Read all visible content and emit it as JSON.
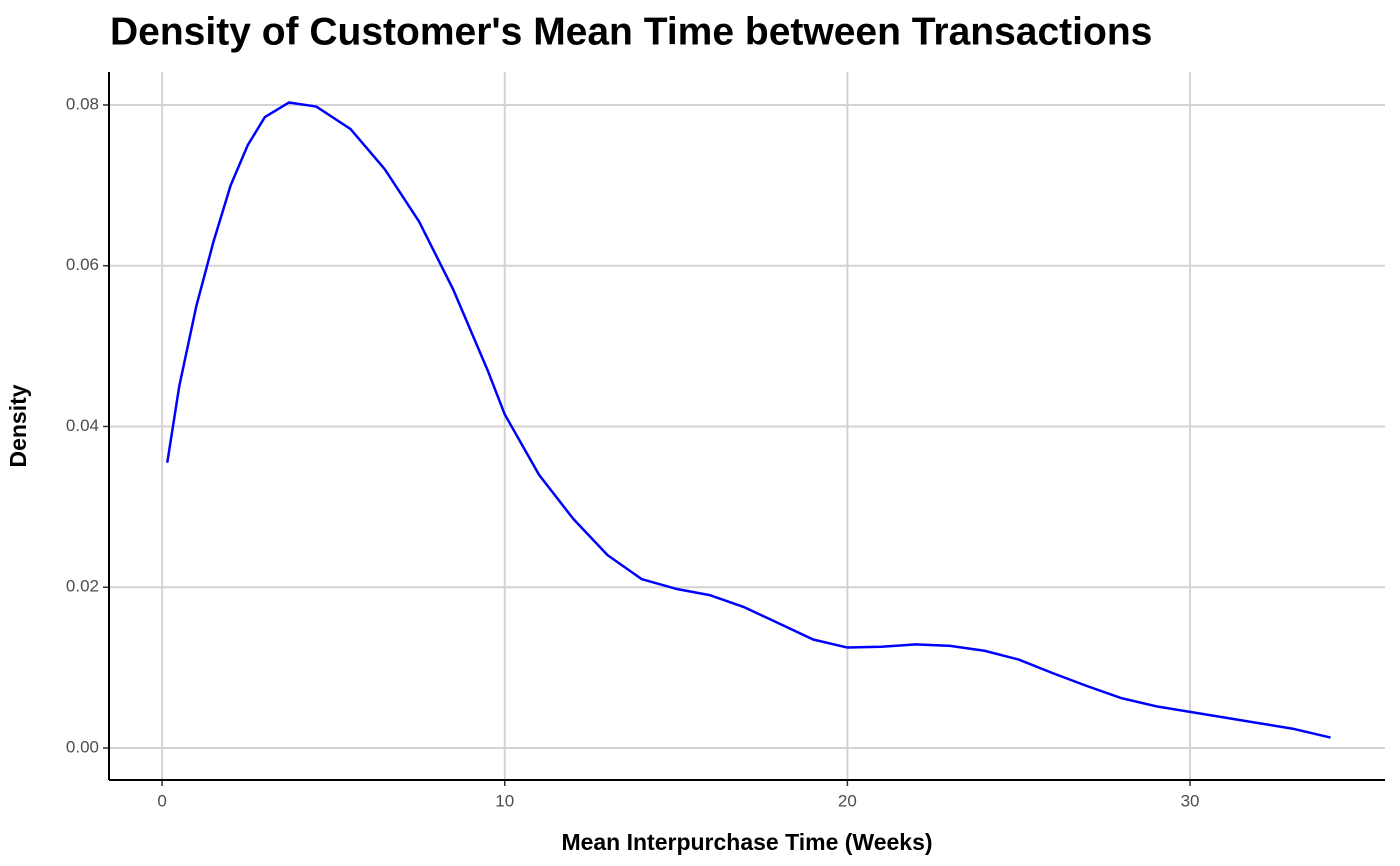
{
  "chart_data": {
    "type": "line",
    "title": "Density of Customer's Mean Time between Transactions",
    "x_label": "Mean Interpurchase Time (Weeks)",
    "y_label": "Density",
    "x": [
      0.15,
      0.5,
      1,
      1.5,
      2,
      2.5,
      3,
      3.7,
      4.5,
      5.5,
      6.5,
      7.5,
      8.5,
      9.5,
      10,
      11,
      12,
      13,
      14,
      15,
      16,
      17,
      18,
      19,
      20,
      21,
      22,
      23,
      24,
      25,
      26,
      27,
      28,
      29,
      30,
      31,
      32,
      33,
      34.1
    ],
    "series": [
      {
        "name": "Density",
        "color": "#0000ff",
        "values": [
          0.0355,
          0.045,
          0.055,
          0.063,
          0.07,
          0.075,
          0.0785,
          0.0803,
          0.0798,
          0.077,
          0.072,
          0.0655,
          0.057,
          0.047,
          0.0415,
          0.034,
          0.0285,
          0.024,
          0.021,
          0.0198,
          0.019,
          0.0175,
          0.0155,
          0.0135,
          0.0125,
          0.0126,
          0.0129,
          0.0127,
          0.0121,
          0.011,
          0.0093,
          0.0077,
          0.0062,
          0.0052,
          0.0045,
          0.0038,
          0.0031,
          0.0024,
          0.0013
        ]
      }
    ],
    "xlim": [
      -1.55,
      35.69
    ],
    "ylim": [
      -0.00398,
      0.0841
    ],
    "xticks": [
      0,
      10,
      20,
      30
    ],
    "yticks": [
      {
        "value": 0,
        "label": "0.00"
      },
      0.02,
      0.04,
      0.06,
      0.08
    ],
    "grid": true
  }
}
